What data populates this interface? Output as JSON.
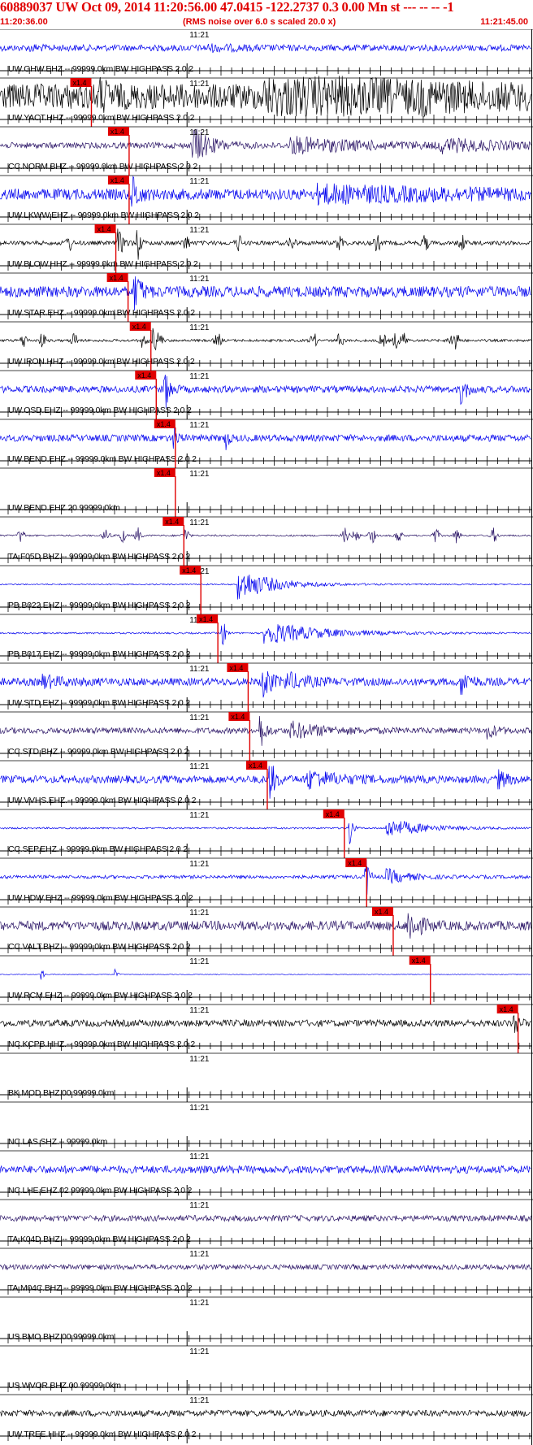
{
  "header": {
    "title": "60889037 UW Oct 09, 2014 11:20:56.00   47.0415 -122.2737  0.3 0.00 Mn st --- -- --  -1",
    "start_time": "11:20:36.00",
    "subtitle": "(RMS noise over 6.0 s scaled 20.0 x)",
    "end_time": "11:21:45.00"
  },
  "chart_data": {
    "type": "seismogram",
    "time_range": [
      "11:20:36.00",
      "11:21:45.00"
    ],
    "minute_tick_label": "11:21",
    "pick_label": "x1.4",
    "colors": {
      "black": "#000000",
      "blue": "#0000ee",
      "purple": "#2a1466",
      "pick": "#e00000"
    },
    "traces": [
      {
        "label": "UW.GHW.EHZ.-- 99999.0km BW  HIGHPASS  2.0  2",
        "color": "blue",
        "amp": 0.15,
        "pick": null,
        "events": [
          [
            0.39,
            0.08,
            0.1
          ],
          [
            0.06,
            0.03,
            0.08
          ]
        ],
        "bursts": []
      },
      {
        "label": "UW.YACT.HHZ.-- 99999.0km BW  HIGHPASS  2.0  2",
        "color": "black",
        "amp": 0.6,
        "pick": 0.172,
        "events": [
          [
            0.19,
            0.02,
            0.45
          ],
          [
            0.5,
            0.3,
            0.9
          ],
          [
            0.79,
            0.06,
            0.15
          ]
        ],
        "bursts": []
      },
      {
        "label": "CC.NORM.BHZ.-- 99999.0km BW  HIGHPASS  2.0  2",
        "color": "purple",
        "amp": 0.14,
        "pick": 0.243,
        "events": [
          [
            0.365,
            0.04,
            0.85
          ],
          [
            0.55,
            0.18,
            0.35
          ],
          [
            0.83,
            0.15,
            0.25
          ]
        ],
        "bursts": []
      },
      {
        "label": "UW.LKWW.EHZ.-- 99999.0km BW  HIGHPASS  2.0  2",
        "color": "blue",
        "amp": 0.26,
        "pick": 0.243,
        "events": [
          [
            0.25,
            0.015,
            0.8
          ],
          [
            0.6,
            0.35,
            0.3
          ]
        ],
        "bursts": []
      },
      {
        "label": "UW.BLOW.HHZ.-- 99999.0km BW  HIGHPASS  2.0  2",
        "color": "black",
        "amp": 0.1,
        "pick": 0.218,
        "events": [
          [
            0.26,
            0.005,
            1.0
          ],
          [
            0.225,
            0.012,
            0.6
          ]
        ],
        "bursts": [
          0.13,
          0.35,
          0.45,
          0.55,
          0.64,
          0.71,
          0.8,
          0.87
        ]
      },
      {
        "label": "UW.STAR.EHZ.-- 99999.0km BW  HIGHPASS  2.0  2",
        "color": "blue",
        "amp": 0.26,
        "pick": 0.241,
        "events": [
          [
            0.255,
            0.015,
            0.85
          ]
        ],
        "bursts": []
      },
      {
        "label": "UW.IRON.HHZ.-- 99999.0km BW  HIGHPASS  2.0  2",
        "color": "black",
        "amp": 0.06,
        "pick": 0.284,
        "events": [
          [
            0.29,
            0.006,
            0.6
          ],
          [
            0.27,
            0.006,
            0.45
          ]
        ],
        "bursts": [
          0.045,
          0.08,
          0.14,
          0.3,
          0.41,
          0.59,
          0.64,
          0.72,
          0.745,
          0.76,
          0.85,
          0.86
        ]
      },
      {
        "label": "UW.OSD.EHZ.-- 99999.0km BW  HIGHPASS  2.0  2",
        "color": "blue",
        "amp": 0.16,
        "pick": 0.294,
        "events": [
          [
            0.31,
            0.012,
            1.0
          ],
          [
            0.87,
            0.012,
            0.65
          ]
        ],
        "bursts": []
      },
      {
        "label": "UW.BEND.EHZ.-- 99999.0km BW  HIGHPASS  2.0  2",
        "color": "blue",
        "amp": 0.16,
        "pick": 0.33,
        "events": [
          [
            0.33,
            0.006,
            0.6
          ],
          [
            0.426,
            0.006,
            0.5
          ]
        ],
        "bursts": []
      },
      {
        "label": "UW.BEND.EHZ.20 99999.0km",
        "color": "none",
        "amp": 0,
        "pick": 0.33,
        "events": [],
        "bursts": []
      },
      {
        "label": "TA.F05D.BHZ.-- 99999.0km BW  HIGHPASS  2.0  2",
        "color": "purple",
        "amp": 0.04,
        "pick": 0.346,
        "events": [],
        "bursts": [
          0.04,
          0.2,
          0.23,
          0.26,
          0.35,
          0.65,
          0.67,
          0.7,
          0.75,
          0.82,
          0.86,
          0.93
        ]
      },
      {
        "label": "PB.B022.EHZ.-- 99999.0km BW  HIGHPASS  2.0  2",
        "color": "blue",
        "amp": 0.03,
        "pick": 0.378,
        "events": [
          [
            0.45,
            0.09,
            0.75
          ]
        ],
        "bursts": []
      },
      {
        "label": "PB.B017.EHZ.-- 99999.0km BW  HIGHPASS  2.0  2",
        "color": "blue",
        "amp": 0.04,
        "pick": 0.41,
        "events": [
          [
            0.42,
            0.005,
            0.85
          ],
          [
            0.5,
            0.14,
            0.55
          ]
        ],
        "bursts": []
      },
      {
        "label": "UW.STD.EHZ.-- 99999.0km BW  HIGHPASS  2.0  2",
        "color": "blue",
        "amp": 0.18,
        "pick": 0.467,
        "events": [
          [
            0.495,
            0.018,
            1.0
          ],
          [
            0.54,
            0.05,
            0.35
          ],
          [
            0.87,
            0.02,
            0.55
          ],
          [
            0.08,
            0.05,
            0.25
          ]
        ],
        "bursts": []
      },
      {
        "label": "CC.STD.BHZ.-- 99999.0km BW  HIGHPASS  2.0  2",
        "color": "purple",
        "amp": 0.14,
        "pick": 0.47,
        "events": [
          [
            0.49,
            0.012,
            0.85
          ],
          [
            0.55,
            0.08,
            0.35
          ],
          [
            0.92,
            0.02,
            0.3
          ]
        ],
        "bursts": []
      },
      {
        "label": "UW.VVHS.EHZ.-- 99999.0km BW  HIGHPASS  2.0  2",
        "color": "blue",
        "amp": 0.18,
        "pick": 0.503,
        "events": [
          [
            0.51,
            0.012,
            0.85
          ],
          [
            0.58,
            0.07,
            0.4
          ],
          [
            0.94,
            0.02,
            0.35
          ]
        ],
        "bursts": []
      },
      {
        "label": "CC.SEP.EHZ.-- 99999.0km BW  HIGHPASS  2.0  2",
        "color": "blue",
        "amp": 0.04,
        "pick": 0.648,
        "events": [
          [
            0.66,
            0.005,
            1.0
          ],
          [
            0.73,
            0.09,
            0.45
          ]
        ],
        "bursts": []
      },
      {
        "label": "UW.HDW.EHZ.-- 99999.0km BW  HIGHPASS  2.0  2",
        "color": "blue",
        "amp": 0.08,
        "pick": 0.69,
        "events": [
          [
            0.69,
            0.007,
            1.0
          ],
          [
            0.73,
            0.05,
            0.35
          ]
        ],
        "bursts": []
      },
      {
        "label": "CC.VALT.BHZ.-- 99999.0km BW  HIGHPASS  2.0  2",
        "color": "purple",
        "amp": 0.22,
        "pick": 0.74,
        "events": [
          [
            0.77,
            0.025,
            0.75
          ]
        ],
        "bursts": []
      },
      {
        "label": "UW.RCM.EHZ.-- 99999.0km BW  HIGHPASS  2.0  2",
        "color": "blue",
        "amp": 0.015,
        "pick": 0.81,
        "events": [
          [
            0.08,
            0.003,
            0.35
          ],
          [
            0.22,
            0.003,
            0.25
          ]
        ],
        "bursts": []
      },
      {
        "label": "NC.KCPB.HHZ.-- 99999.0km BW  HIGHPASS  2.0  2",
        "color": "black",
        "amp": 0.16,
        "pick": 0.975,
        "events": [
          [
            0.97,
            0.01,
            0.5
          ]
        ],
        "bursts": []
      },
      {
        "label": "BK.MOD.BHZ.00 99999.0km",
        "color": "none",
        "amp": 0,
        "pick": null,
        "events": [],
        "bursts": []
      },
      {
        "label": "NC.LAS.SHZ.-- 99999.0km",
        "color": "none",
        "amp": 0,
        "pick": null,
        "events": [],
        "bursts": []
      },
      {
        "label": "NC.LHE.EHZ.02 99999.0km BW  HIGHPASS  2.0  2",
        "color": "blue",
        "amp": 0.18,
        "pick": null,
        "events": [],
        "bursts": []
      },
      {
        "label": "TA.K04D.BHZ.-- 99999.0km BW  HIGHPASS  2.0  2",
        "color": "purple",
        "amp": 0.14,
        "pick": null,
        "events": [],
        "bursts": []
      },
      {
        "label": "TA.M04C.BHZ.-- 99999.0km BW  HIGHPASS  2.0  2",
        "color": "purple",
        "amp": 0.12,
        "pick": null,
        "events": [],
        "bursts": []
      },
      {
        "label": "US.BMO.BHZ.00 99999.0km",
        "color": "none",
        "amp": 0,
        "pick": null,
        "events": [],
        "bursts": []
      },
      {
        "label": "US.WVOR.BHZ.00 99999.0km",
        "color": "none",
        "amp": 0,
        "pick": null,
        "events": [],
        "bursts": []
      },
      {
        "label": "UW.TREE.HHZ.-- 99999.0km BW  HIGHPASS  2.0  2",
        "color": "black",
        "amp": 0.15,
        "pick": null,
        "events": [],
        "bursts": []
      }
    ]
  }
}
